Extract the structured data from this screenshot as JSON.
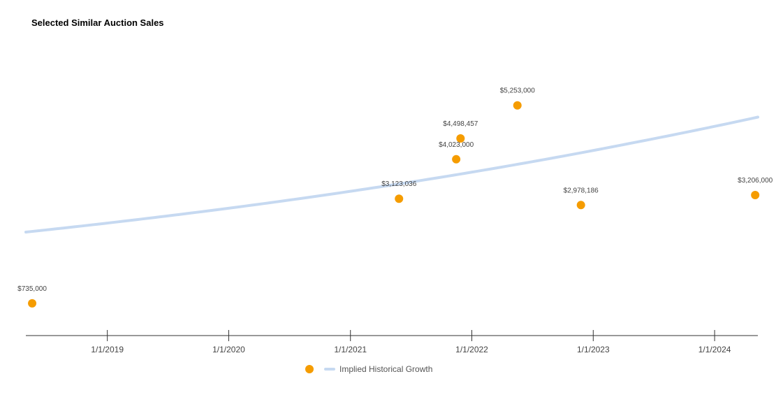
{
  "chart_data": {
    "type": "scatter",
    "title": "Selected Similar Auction Sales",
    "xlabel": "",
    "ylabel": "",
    "x_axis": {
      "type": "date",
      "range": [
        "2018-05-01",
        "2024-05-10"
      ],
      "ticks": [
        "2019-01-01",
        "2020-01-01",
        "2021-01-01",
        "2022-01-01",
        "2023-01-01",
        "2024-01-01"
      ],
      "tick_labels": [
        "1/1/2019",
        "1/1/2020",
        "1/1/2021",
        "1/1/2022",
        "1/1/2023",
        "1/1/2024"
      ]
    },
    "y_axis": {
      "range": [
        0,
        6700000
      ],
      "visible": false
    },
    "grid": false,
    "legend_position": "bottom",
    "series": [
      {
        "type": "scatter",
        "color": "#F59C00",
        "points": [
          {
            "x": "2018-05-20",
            "y": 735000,
            "label": "$735,000"
          },
          {
            "x": "2021-05-27",
            "y": 3123036,
            "label": "$3,123,036"
          },
          {
            "x": "2021-11-15",
            "y": 4023000,
            "label": "$4,023,000"
          },
          {
            "x": "2021-11-28",
            "y": 4498457,
            "label": "$4,498,457"
          },
          {
            "x": "2022-05-18",
            "y": 5253000,
            "label": "$5,253,000"
          },
          {
            "x": "2022-11-25",
            "y": 2978186,
            "label": "$2,978,186"
          },
          {
            "x": "2024-05-02",
            "y": 3206000,
            "label": "$3,206,000"
          }
        ]
      },
      {
        "name": "Implied Historical Growth",
        "type": "line",
        "color": "#C6D9F1",
        "x": [
          "2018-05-01",
          "2019-05-01",
          "2020-05-01",
          "2021-05-01",
          "2022-05-01",
          "2023-05-01",
          "2024-05-10"
        ],
        "values": [
          2361000,
          2674000,
          3028000,
          3430000,
          3885000,
          4400000,
          4985000
        ]
      }
    ]
  }
}
